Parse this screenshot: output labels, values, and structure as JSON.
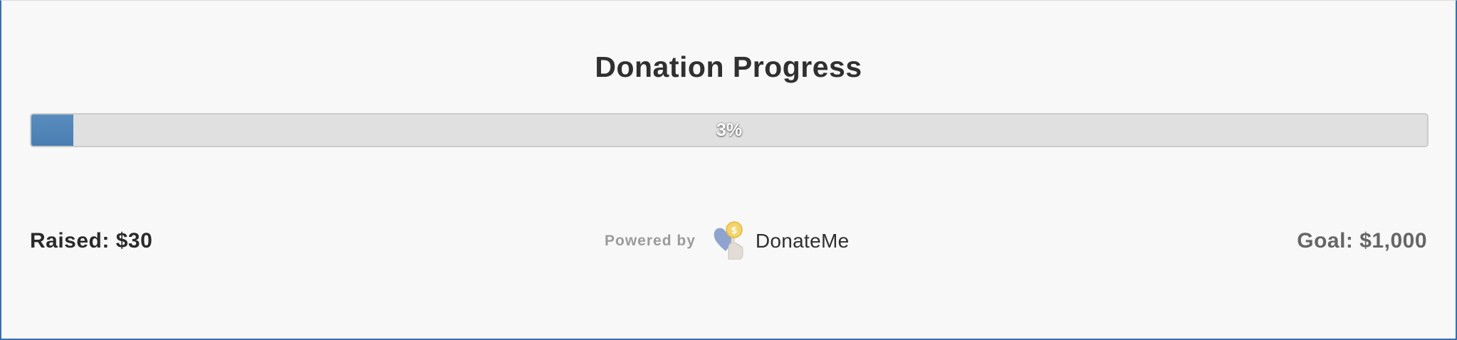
{
  "widget": {
    "title": "Donation Progress"
  },
  "progress": {
    "percent": 3,
    "label": "3%",
    "fill_color": "#4a7eb3",
    "track_color": "#e0e0e0"
  },
  "summary": {
    "raised_label": "Raised: $30",
    "goal_label": "Goal: $1,000"
  },
  "branding": {
    "powered_by_label": "Powered by",
    "brand_name": "DonateMe",
    "logo_icon": "heart-hand-coin-icon"
  }
}
